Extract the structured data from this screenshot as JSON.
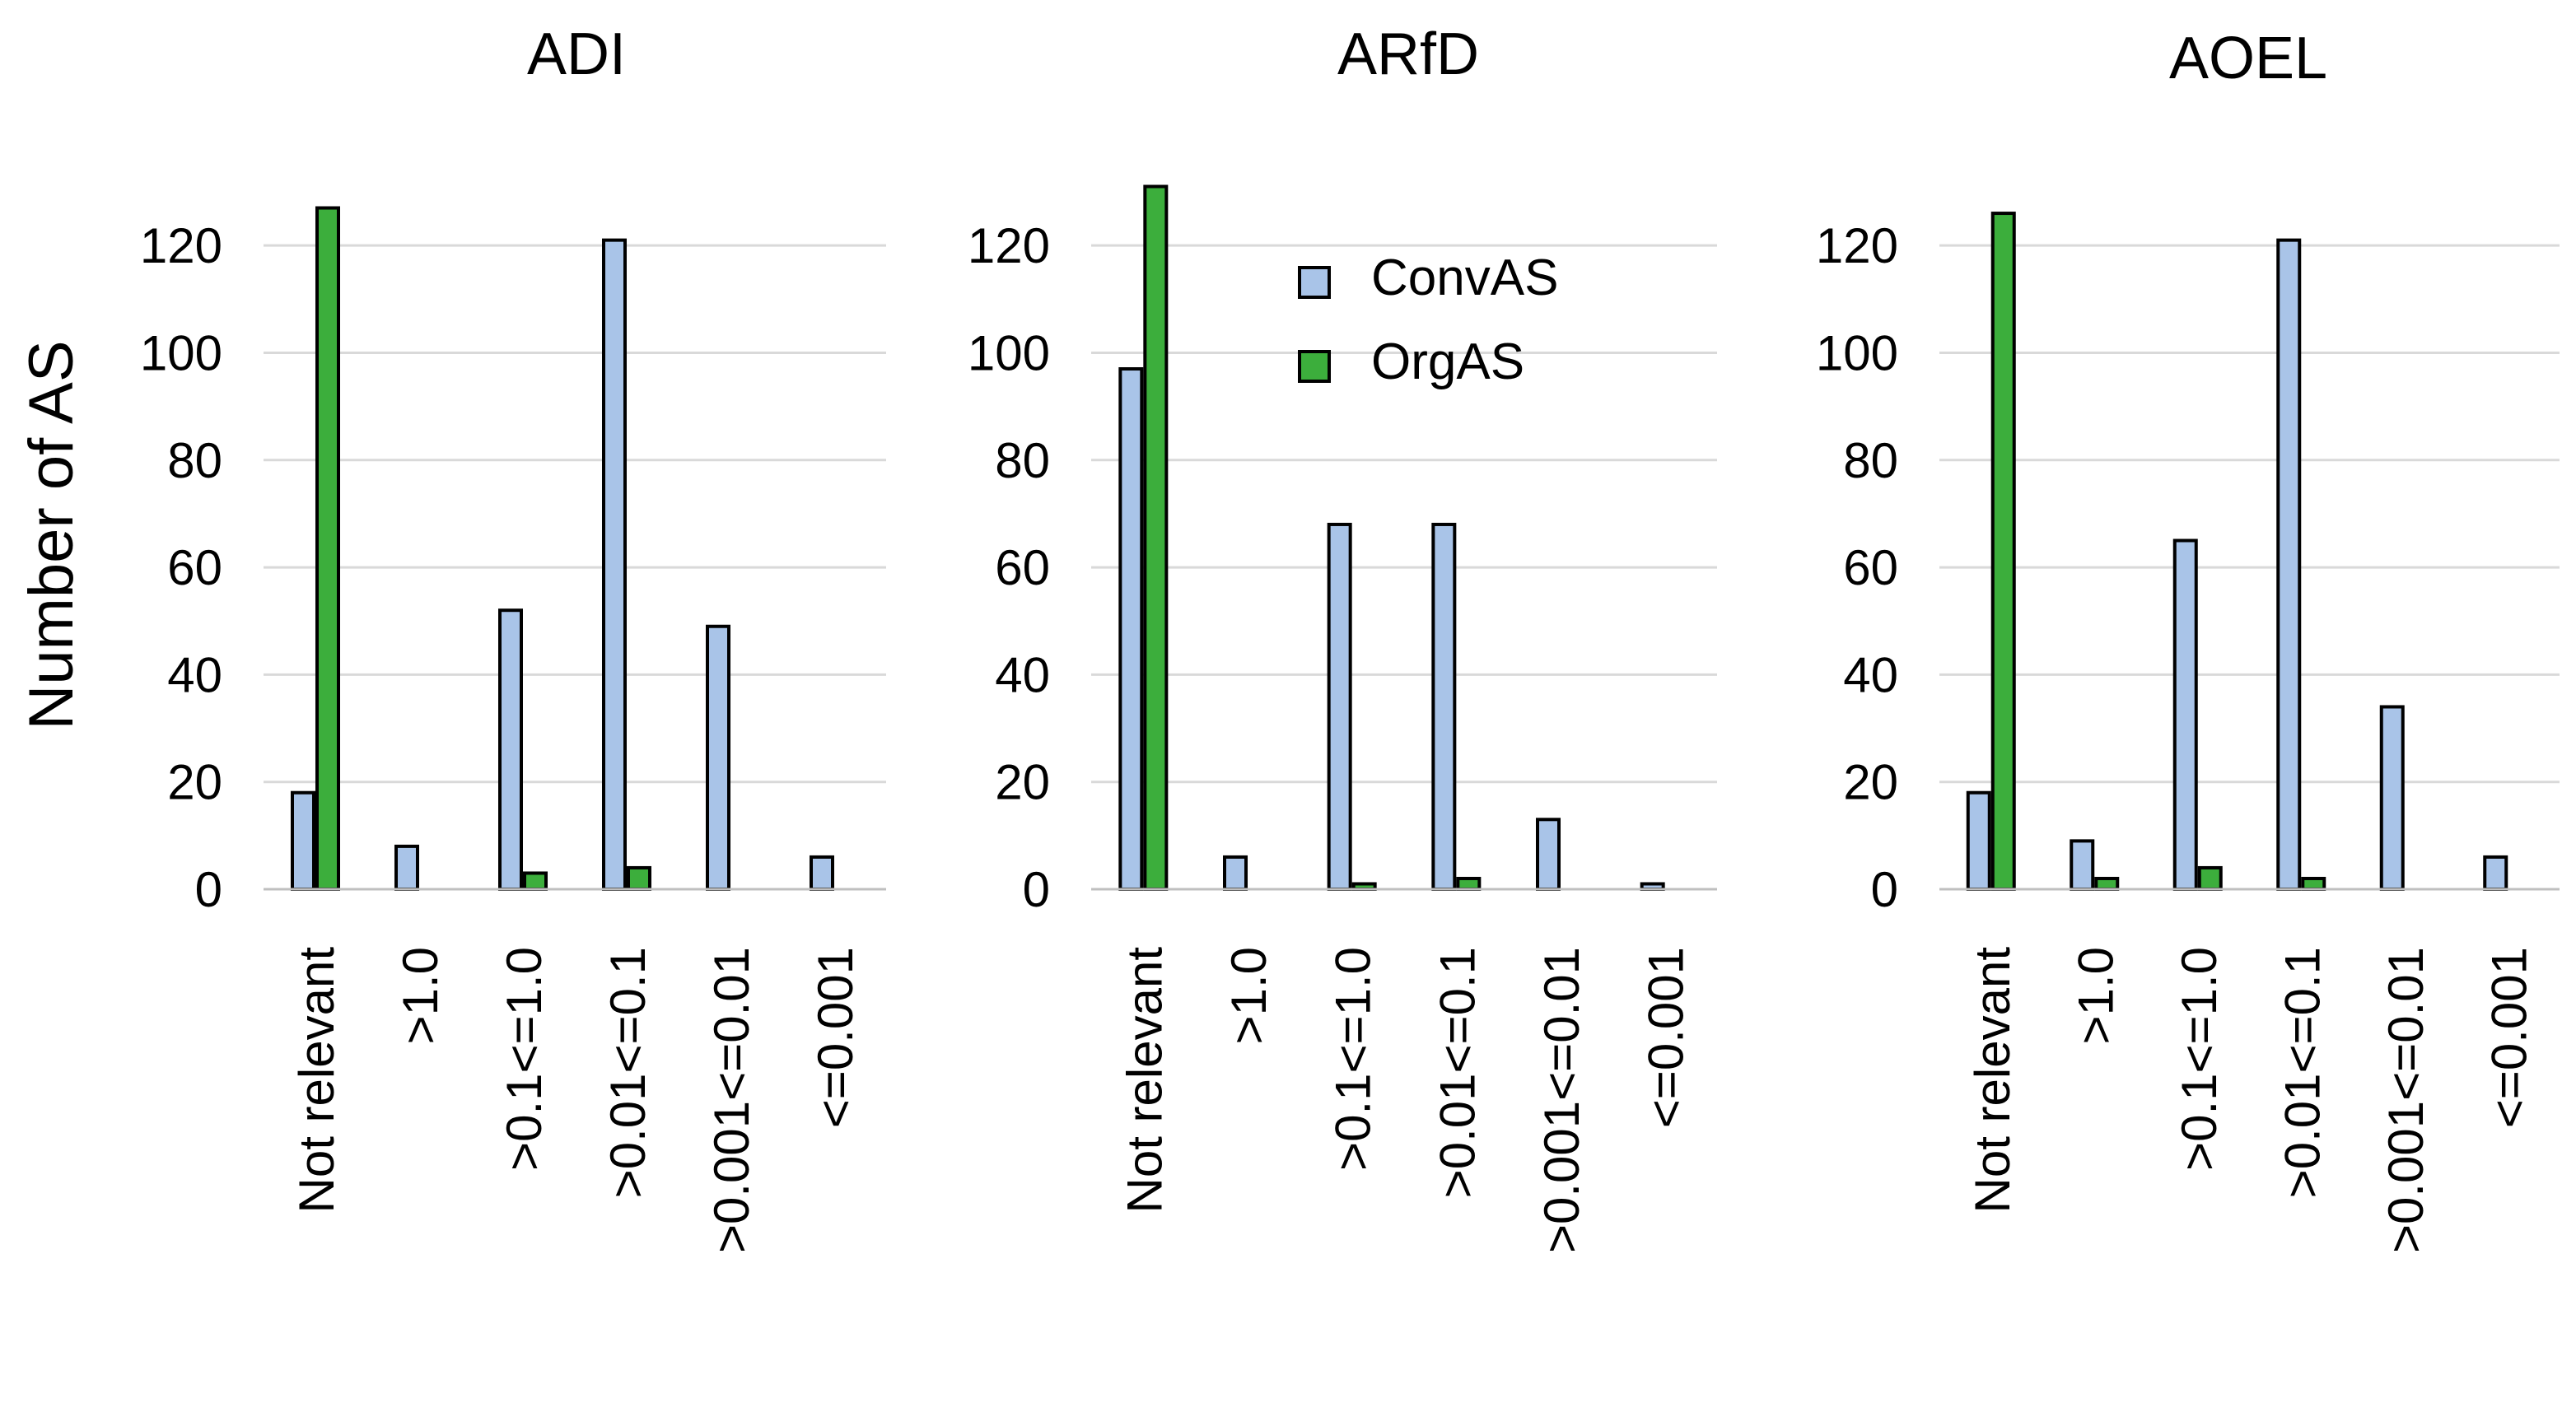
{
  "chart_data": [
    {
      "type": "bar",
      "title": "ADI",
      "ylabel": "Number of AS",
      "categories": [
        "Not relevant",
        ">1.0",
        ">0.1<=1.0",
        ">0.01<=0.1",
        ">0.001<=0.01",
        "<=0.001"
      ],
      "series": [
        {
          "name": "ConvAS",
          "values": [
            18,
            8,
            52,
            121,
            49,
            6
          ]
        },
        {
          "name": "OrgAS",
          "values": [
            127,
            0,
            3,
            4,
            0,
            0
          ]
        }
      ],
      "ylim": [
        0,
        130
      ],
      "yticks": [
        "0",
        "20",
        "40",
        "60",
        "80",
        "100",
        "120"
      ],
      "grid": true
    },
    {
      "type": "bar",
      "title": "ARfD",
      "ylabel": "",
      "categories": [
        "Not relevant",
        ">1.0",
        ">0.1<=1.0",
        ">0.01<=0.1",
        ">0.001<=0.01",
        "<=0.001"
      ],
      "series": [
        {
          "name": "ConvAS",
          "values": [
            97,
            6,
            68,
            68,
            13,
            1
          ]
        },
        {
          "name": "OrgAS",
          "values": [
            131,
            0,
            1,
            2,
            0,
            0
          ]
        }
      ],
      "ylim": [
        0,
        130
      ],
      "yticks": [
        "0",
        "20",
        "40",
        "60",
        "80",
        "100",
        "120"
      ],
      "grid": true,
      "legend": {
        "position": "top-right",
        "entries": [
          "ConvAS",
          "OrgAS"
        ]
      }
    },
    {
      "type": "bar",
      "title": "AOEL",
      "ylabel": "",
      "categories": [
        "Not relevant",
        ">1.0",
        ">0.1<=1.0",
        ">0.01<=0.1",
        ">0.001<=0.01",
        "<=0.001"
      ],
      "series": [
        {
          "name": "ConvAS",
          "values": [
            18,
            9,
            65,
            121,
            34,
            6
          ]
        },
        {
          "name": "OrgAS",
          "values": [
            126,
            2,
            4,
            2,
            0,
            0
          ]
        }
      ],
      "ylim": [
        0,
        130
      ],
      "yticks": [
        "0",
        "20",
        "40",
        "60",
        "80",
        "100",
        "120"
      ],
      "grid": true
    }
  ],
  "colors": {
    "ConvAS": "#a9c4e8",
    "OrgAS": "#3cae3c",
    "grid": "#d9d9d9"
  }
}
